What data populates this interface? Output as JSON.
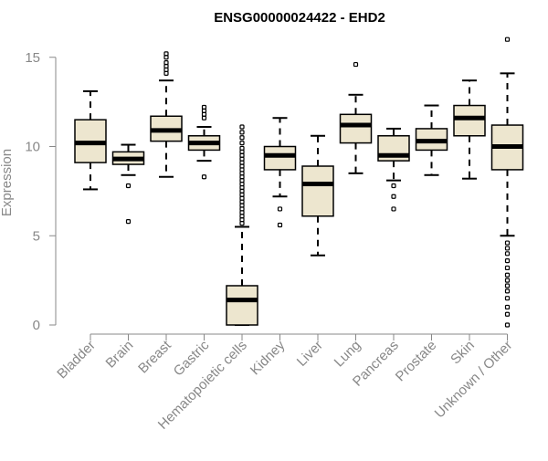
{
  "chart_data": {
    "type": "boxplot",
    "title": "ENSG00000024422 - EHD2",
    "ylabel": "Expression",
    "xlabel": "",
    "ylim": [
      0,
      16
    ],
    "yticks": [
      0,
      5,
      10,
      15
    ],
    "categories": [
      "Bladder",
      "Brain",
      "Breast",
      "Gastric",
      "Hematopoietic cells",
      "Kidney",
      "Liver",
      "Lung",
      "Pancreas",
      "Prostate",
      "Skin",
      "Unknown / Other"
    ],
    "boxes": [
      {
        "label": "Bladder",
        "whislo": 7.6,
        "q1": 9.1,
        "med": 10.2,
        "q3": 11.5,
        "whishi": 13.1,
        "fliers": []
      },
      {
        "label": "Brain",
        "whislo": 8.4,
        "q1": 9.0,
        "med": 9.3,
        "q3": 9.7,
        "whishi": 10.1,
        "fliers": [
          7.8,
          5.8
        ]
      },
      {
        "label": "Breast",
        "whislo": 8.3,
        "q1": 10.3,
        "med": 10.9,
        "q3": 11.7,
        "whishi": 13.7,
        "fliers": [
          14.1,
          14.3,
          14.5,
          14.7,
          15.0,
          15.2
        ]
      },
      {
        "label": "Gastric",
        "whislo": 9.2,
        "q1": 9.8,
        "med": 10.2,
        "q3": 10.6,
        "whishi": 11.1,
        "fliers": [
          8.3,
          11.6,
          11.8,
          12.0,
          12.2
        ]
      },
      {
        "label": "Hematopoietic cells",
        "whislo": 0.0,
        "q1": 0.0,
        "med": 1.4,
        "q3": 2.2,
        "whishi": 5.5,
        "fliers": [
          5.7,
          5.9,
          6.1,
          6.3,
          6.5,
          6.7,
          6.9,
          7.1,
          7.3,
          7.5,
          7.7,
          7.9,
          8.1,
          8.3,
          8.5,
          8.7,
          8.9,
          9.1,
          9.3,
          9.5,
          9.7,
          9.9,
          10.2,
          10.5,
          10.8,
          11.1
        ]
      },
      {
        "label": "Kidney",
        "whislo": 7.2,
        "q1": 8.7,
        "med": 9.5,
        "q3": 10.0,
        "whishi": 11.6,
        "fliers": [
          6.5,
          5.6
        ]
      },
      {
        "label": "Liver",
        "whislo": 3.9,
        "q1": 6.1,
        "med": 7.9,
        "q3": 8.9,
        "whishi": 10.6,
        "fliers": []
      },
      {
        "label": "Lung",
        "whislo": 8.5,
        "q1": 10.2,
        "med": 11.2,
        "q3": 11.8,
        "whishi": 12.9,
        "fliers": [
          14.6
        ]
      },
      {
        "label": "Pancreas",
        "whislo": 8.1,
        "q1": 9.2,
        "med": 9.5,
        "q3": 10.6,
        "whishi": 11.0,
        "fliers": [
          7.8,
          7.2,
          6.5
        ]
      },
      {
        "label": "Prostate",
        "whislo": 8.4,
        "q1": 9.8,
        "med": 10.3,
        "q3": 11.0,
        "whishi": 12.3,
        "fliers": []
      },
      {
        "label": "Skin",
        "whislo": 8.2,
        "q1": 10.6,
        "med": 11.6,
        "q3": 12.3,
        "whishi": 13.7,
        "fliers": []
      },
      {
        "label": "Unknown / Other",
        "whislo": 5.0,
        "q1": 8.7,
        "med": 10.0,
        "q3": 11.2,
        "whishi": 14.1,
        "fliers": [
          16.0,
          4.6,
          4.3,
          4.0,
          3.6,
          3.2,
          2.8,
          2.5,
          2.2,
          1.9,
          1.5,
          1.0,
          0.6,
          0.0
        ]
      }
    ],
    "box_fill": "#ede6cf",
    "axis_color": "#888888",
    "grid": false,
    "legend": "none"
  }
}
